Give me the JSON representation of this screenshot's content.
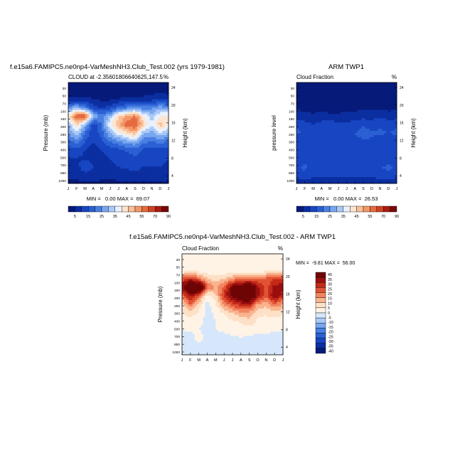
{
  "months": [
    "J",
    "F",
    "M",
    "A",
    "M",
    "J",
    "J",
    "A",
    "S",
    "O",
    "N",
    "D",
    "J"
  ],
  "pressure_ticks": [
    "30",
    "50",
    "70",
    "100",
    "150",
    "200",
    "250",
    "300",
    "400",
    "500",
    "700",
    "850",
    "1000"
  ],
  "height_ticks": [
    "24",
    "20",
    "16",
    "12",
    "8",
    "4"
  ],
  "seq_colors": [
    "#0a1a80",
    "#0d2da6",
    "#1d4ac8",
    "#3468d8",
    "#5b8fe8",
    "#8fb8f3",
    "#c6dcfa",
    "#ffffff",
    "#fde0c8",
    "#f9b48e",
    "#f28561",
    "#e05334",
    "#c42a19",
    "#990f0f",
    "#6e0505"
  ],
  "seq_labels": [
    "5",
    "15",
    "25",
    "35",
    "45",
    "55",
    "70",
    "90"
  ],
  "diff_colors": [
    "#0a1a80",
    "#0d2da6",
    "#1d4ac8",
    "#3468d8",
    "#5b8fe8",
    "#8fb8f3",
    "#c6dcfa",
    "#dcebfc",
    "#ffffff",
    "#fde3cb",
    "#f9b48e",
    "#f28561",
    "#e05334",
    "#c42a19",
    "#990f0f",
    "#6e0505"
  ],
  "diff_labels": [
    "40",
    "35",
    "30",
    "25",
    "20",
    "15",
    "10",
    "5",
    "0",
    "-5",
    "-10",
    "-15",
    "-20",
    "-25",
    "-30",
    "-35",
    "-40"
  ],
  "panels": [
    {
      "title": "f.e15a6.FAMIPC5.ne0np4-VarMeshNH3.Club_Test.002 (yrs 1979-1981)",
      "left_label": "CLOUD at -2.35601806640625,147.5",
      "right_label": "%",
      "stats": "MIN =   0.00 MAX =  69.07",
      "ylabel": "Pressure (mb)",
      "ylabel2": "Height (km)"
    },
    {
      "title": "ARM TWP1",
      "left_label": "Cloud Fraction",
      "right_label": "%",
      "stats": "MIN =   0.00 MAX =  26.53",
      "ylabel": "pressure level",
      "ylabel2": "Height (km)"
    },
    {
      "title": "f.e15a6.FAMIPC5.ne0np4-VarMeshNH3.Club_Test.002 - ARM TWP1",
      "left_label": "Cloud Fraction",
      "right_label": "%",
      "stats": "MIN =  -9.81 MAX =  56.00",
      "ylabel": "Pressure (mb)",
      "ylabel2": "Height (km)"
    }
  ],
  "chart_data": [
    {
      "type": "heatmap",
      "title": "f.e15a6.FAMIPC5.ne0np4-VarMeshNH3.Club_Test.002 (yrs 1979-1981)",
      "field": "CLOUD at -2.35601806640625,147.5",
      "units": "%",
      "x": [
        "J",
        "F",
        "M",
        "A",
        "M",
        "J",
        "J",
        "A",
        "S",
        "O",
        "N",
        "D",
        "J"
      ],
      "y_pressure_mb": [
        30,
        50,
        70,
        100,
        150,
        200,
        250,
        300,
        400,
        500,
        700,
        850,
        1000
      ],
      "values": [
        [
          2,
          2,
          2,
          2,
          2,
          2,
          2,
          2,
          2,
          2,
          2,
          2,
          2
        ],
        [
          3,
          3,
          3,
          3,
          3,
          3,
          3,
          3,
          3,
          3,
          3,
          3,
          3
        ],
        [
          6,
          6,
          6,
          5,
          4,
          4,
          5,
          6,
          6,
          6,
          8,
          9,
          8
        ],
        [
          25,
          30,
          22,
          12,
          10,
          12,
          18,
          22,
          24,
          22,
          24,
          28,
          26
        ],
        [
          40,
          60,
          62,
          30,
          22,
          30,
          45,
          50,
          55,
          40,
          32,
          40,
          42
        ],
        [
          30,
          45,
          30,
          12,
          20,
          40,
          48,
          58,
          60,
          45,
          35,
          48,
          40
        ],
        [
          25,
          35,
          20,
          10,
          18,
          30,
          38,
          44,
          48,
          30,
          28,
          35,
          30
        ],
        [
          18,
          22,
          15,
          10,
          14,
          20,
          24,
          28,
          30,
          22,
          20,
          22,
          20
        ],
        [
          12,
          14,
          10,
          8,
          10,
          12,
          14,
          16,
          18,
          14,
          14,
          14,
          12
        ],
        [
          10,
          10,
          9,
          8,
          9,
          10,
          11,
          12,
          14,
          12,
          12,
          12,
          10
        ],
        [
          8,
          8,
          14,
          10,
          8,
          9,
          10,
          11,
          12,
          10,
          10,
          10,
          8
        ],
        [
          6,
          6,
          8,
          8,
          6,
          6,
          7,
          8,
          8,
          8,
          8,
          8,
          6
        ],
        [
          4,
          4,
          4,
          4,
          4,
          4,
          4,
          4,
          4,
          4,
          4,
          4,
          4
        ]
      ],
      "min": 0.0,
      "max": 69.07,
      "colorbar_levels": [
        5,
        10,
        15,
        20,
        25,
        30,
        35,
        40,
        45,
        50,
        55,
        60,
        70,
        80,
        90
      ]
    },
    {
      "type": "heatmap",
      "title": "ARM TWP1",
      "field": "Cloud Fraction",
      "units": "%",
      "x": [
        "J",
        "F",
        "M",
        "A",
        "M",
        "J",
        "J",
        "A",
        "S",
        "O",
        "N",
        "D",
        "J"
      ],
      "y_pressure_mb": [
        30,
        50,
        70,
        100,
        150,
        200,
        250,
        300,
        400,
        500,
        700,
        850,
        1000
      ],
      "values": [
        [
          1,
          1,
          1,
          1,
          1,
          1,
          1,
          1,
          1,
          1,
          1,
          1,
          1
        ],
        [
          1,
          1,
          1,
          1,
          1,
          1,
          1,
          1,
          1,
          1,
          1,
          1,
          1
        ],
        [
          2,
          2,
          2,
          2,
          2,
          2,
          2,
          2,
          2,
          2,
          2,
          2,
          2
        ],
        [
          4,
          3,
          3,
          3,
          3,
          3,
          3,
          3,
          4,
          4,
          4,
          3,
          4
        ],
        [
          8,
          7,
          6,
          7,
          6,
          6,
          7,
          8,
          8,
          8,
          9,
          8,
          8
        ],
        [
          14,
          12,
          10,
          12,
          13,
          12,
          11,
          12,
          14,
          12,
          14,
          12,
          14
        ],
        [
          16,
          14,
          12,
          14,
          15,
          14,
          13,
          15,
          18,
          16,
          16,
          15,
          16
        ],
        [
          12,
          12,
          11,
          12,
          13,
          12,
          12,
          13,
          14,
          14,
          12,
          12,
          12
        ],
        [
          10,
          10,
          10,
          10,
          11,
          10,
          10,
          10,
          10,
          10,
          10,
          10,
          10
        ],
        [
          10,
          12,
          10,
          10,
          10,
          10,
          10,
          10,
          10,
          10,
          10,
          10,
          10
        ],
        [
          14,
          16,
          12,
          13,
          14,
          13,
          12,
          12,
          13,
          14,
          15,
          16,
          14
        ],
        [
          12,
          14,
          12,
          12,
          12,
          12,
          11,
          11,
          12,
          12,
          13,
          14,
          12
        ],
        [
          6,
          6,
          6,
          6,
          6,
          6,
          6,
          6,
          6,
          6,
          6,
          6,
          6
        ]
      ],
      "min": 0.0,
      "max": 26.53,
      "colorbar_levels": [
        5,
        10,
        15,
        20,
        25,
        30,
        35,
        40,
        45,
        50,
        55,
        60,
        70,
        80,
        90
      ]
    },
    {
      "type": "heatmap",
      "title": "f.e15a6.FAMIPC5.ne0np4-VarMeshNH3.Club_Test.002 - ARM TWP1",
      "field": "Cloud Fraction",
      "units": "%",
      "x": [
        "J",
        "F",
        "M",
        "A",
        "M",
        "J",
        "J",
        "A",
        "S",
        "O",
        "N",
        "D",
        "J"
      ],
      "y_pressure_mb": [
        30,
        50,
        70,
        100,
        150,
        200,
        250,
        300,
        400,
        500,
        700,
        850,
        1000
      ],
      "values": [
        [
          0,
          0,
          0,
          0,
          0,
          0,
          0,
          0,
          0,
          0,
          0,
          0,
          0
        ],
        [
          0,
          0,
          0,
          0,
          0,
          0,
          0,
          0,
          0,
          0,
          0,
          0,
          0
        ],
        [
          2,
          3,
          3,
          2,
          1,
          1,
          1,
          2,
          2,
          2,
          3,
          4,
          3
        ],
        [
          22,
          28,
          20,
          10,
          8,
          10,
          16,
          20,
          22,
          20,
          22,
          26,
          24
        ],
        [
          33,
          52,
          55,
          22,
          14,
          22,
          38,
          42,
          47,
          32,
          22,
          32,
          34
        ],
        [
          17,
          33,
          20,
          2,
          8,
          28,
          37,
          46,
          46,
          33,
          21,
          36,
          26
        ],
        [
          8,
          20,
          8,
          -2,
          4,
          16,
          24,
          28,
          30,
          14,
          12,
          20,
          14
        ],
        [
          4,
          8,
          4,
          -2,
          1,
          6,
          10,
          14,
          14,
          6,
          6,
          8,
          6
        ],
        [
          2,
          3,
          1,
          -1,
          0,
          2,
          4,
          6,
          8,
          4,
          3,
          3,
          2
        ],
        [
          0,
          1,
          0,
          -1,
          0,
          1,
          2,
          2,
          3,
          2,
          2,
          1,
          0
        ],
        [
          -2,
          -2,
          2,
          -2,
          -3,
          -2,
          -1,
          0,
          -1,
          -2,
          -2,
          -3,
          -2
        ],
        [
          -3,
          -4,
          -2,
          -2,
          -4,
          -3,
          -2,
          -1,
          -2,
          -2,
          -3,
          -4,
          -3
        ],
        [
          -1,
          -1,
          -1,
          -1,
          -1,
          -1,
          -1,
          -1,
          -1,
          -1,
          -1,
          -1,
          -1
        ]
      ],
      "min": -9.81,
      "max": 56.0,
      "colorbar_levels": [
        -40,
        -35,
        -30,
        -25,
        -20,
        -15,
        -10,
        -5,
        0,
        5,
        10,
        15,
        20,
        25,
        30,
        35,
        40
      ]
    }
  ]
}
